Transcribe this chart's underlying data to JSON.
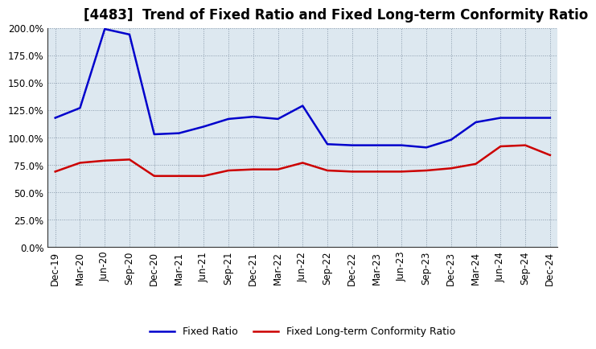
{
  "title": "[4483]  Trend of Fixed Ratio and Fixed Long-term Conformity Ratio",
  "x_labels": [
    "Dec-19",
    "Mar-20",
    "Jun-20",
    "Sep-20",
    "Dec-20",
    "Mar-21",
    "Jun-21",
    "Sep-21",
    "Dec-21",
    "Mar-22",
    "Jun-22",
    "Sep-22",
    "Dec-22",
    "Mar-23",
    "Jun-23",
    "Sep-23",
    "Dec-23",
    "Mar-24",
    "Jun-24",
    "Sep-24",
    "Dec-24"
  ],
  "fixed_ratio": [
    1.18,
    1.27,
    1.99,
    1.94,
    1.03,
    1.04,
    1.1,
    1.17,
    1.19,
    1.17,
    1.29,
    0.94,
    0.93,
    0.93,
    0.93,
    0.91,
    0.98,
    1.14,
    1.18,
    1.18,
    1.18
  ],
  "fixed_lt_ratio": [
    0.69,
    0.77,
    0.79,
    0.8,
    0.65,
    0.65,
    0.65,
    0.7,
    0.71,
    0.71,
    0.77,
    0.7,
    0.69,
    0.69,
    0.69,
    0.7,
    0.72,
    0.76,
    0.92,
    0.93,
    0.84
  ],
  "fixed_ratio_color": "#0000cc",
  "fixed_lt_ratio_color": "#cc0000",
  "background_color": "#ffffff",
  "plot_bg_color": "#dde8f0",
  "grid_color": "#8899aa",
  "ylim": [
    0.0,
    2.0
  ],
  "yticks": [
    0.0,
    0.25,
    0.5,
    0.75,
    1.0,
    1.25,
    1.5,
    1.75,
    2.0
  ],
  "legend_fixed_ratio": "Fixed Ratio",
  "legend_fixed_lt_ratio": "Fixed Long-term Conformity Ratio",
  "title_fontsize": 12,
  "axis_fontsize": 8.5,
  "legend_fontsize": 9
}
